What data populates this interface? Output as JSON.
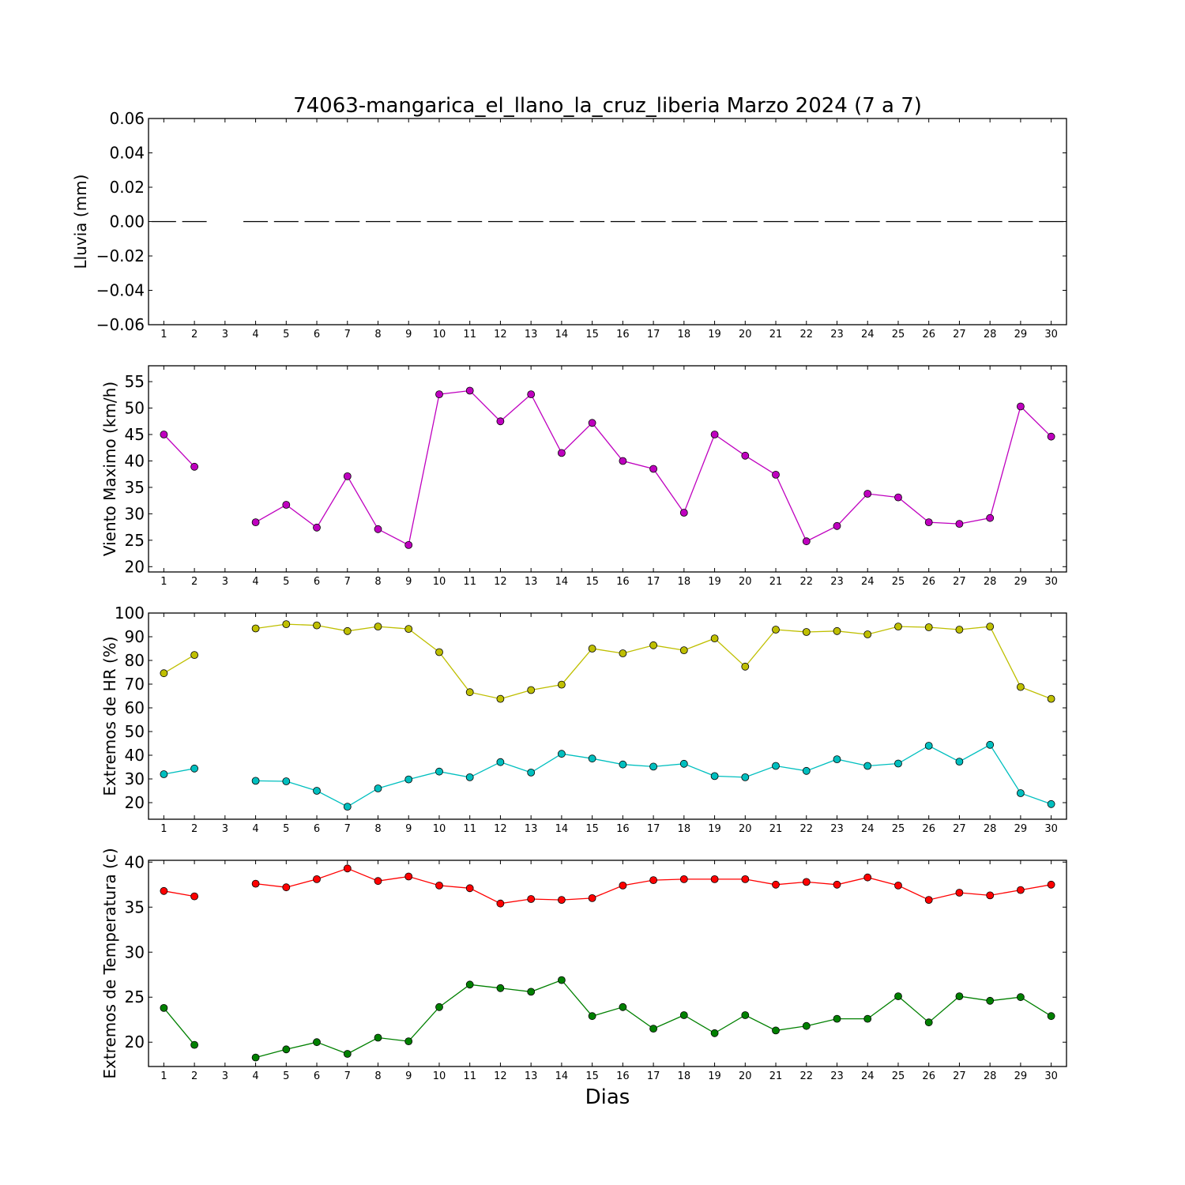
{
  "figure": {
    "title": "74063-mangarica_el_llano_la_cruz_liberia Marzo 2024  (7 a 7)",
    "xlabel": "Dias"
  },
  "chart_data": [
    {
      "type": "line",
      "ylabel": "Lluvia (mm)",
      "xlim": [
        0.5,
        30.5
      ],
      "ylim": [
        -0.06,
        0.06
      ],
      "x": [
        1,
        2,
        3,
        4,
        5,
        6,
        7,
        8,
        9,
        10,
        11,
        12,
        13,
        14,
        15,
        16,
        17,
        18,
        19,
        20,
        21,
        22,
        23,
        24,
        25,
        26,
        27,
        28,
        29,
        30
      ],
      "xticks": [
        "1",
        "2",
        "3",
        "4",
        "5",
        "6",
        "7",
        "8",
        "9",
        "10",
        "11",
        "12",
        "13",
        "14",
        "15",
        "16",
        "17",
        "18",
        "19",
        "20",
        "21",
        "22",
        "23",
        "24",
        "25",
        "26",
        "27",
        "28",
        "29",
        "30"
      ],
      "yticks": [
        -0.06,
        -0.04,
        -0.02,
        0.0,
        0.02,
        0.04,
        0.06
      ],
      "ytick_labels": [
        "−0.06",
        "−0.04",
        "−0.02",
        "0.00",
        "0.02",
        "0.04",
        "0.06"
      ],
      "grid": false,
      "series": [
        {
          "style": "bar-dash",
          "color": "#000000",
          "values": [
            0,
            0,
            null,
            0,
            0,
            0,
            0,
            0,
            0,
            0,
            0,
            0,
            0,
            0,
            0,
            0,
            0,
            0,
            0,
            0,
            0,
            0,
            0,
            0,
            0,
            0,
            0,
            0,
            0,
            0
          ]
        }
      ]
    },
    {
      "type": "line",
      "ylabel": "Viento Maximo (km/h)",
      "xlim": [
        0.5,
        30.5
      ],
      "ylim": [
        19,
        58
      ],
      "x": [
        1,
        2,
        3,
        4,
        5,
        6,
        7,
        8,
        9,
        10,
        11,
        12,
        13,
        14,
        15,
        16,
        17,
        18,
        19,
        20,
        21,
        22,
        23,
        24,
        25,
        26,
        27,
        28,
        29,
        30
      ],
      "xticks": [
        "1",
        "2",
        "3",
        "4",
        "5",
        "6",
        "7",
        "8",
        "9",
        "10",
        "11",
        "12",
        "13",
        "14",
        "15",
        "16",
        "17",
        "18",
        "19",
        "20",
        "21",
        "22",
        "23",
        "24",
        "25",
        "26",
        "27",
        "28",
        "29",
        "30"
      ],
      "yticks": [
        20,
        25,
        30,
        35,
        40,
        45,
        50,
        55
      ],
      "ytick_labels": [
        "20",
        "25",
        "30",
        "35",
        "40",
        "45",
        "50",
        "55"
      ],
      "grid": false,
      "series": [
        {
          "style": "line-marker",
          "color": "#bf00bf",
          "values": [
            45,
            38.9,
            null,
            28.4,
            31.7,
            27.4,
            37.1,
            27.1,
            24.1,
            52.6,
            53.3,
            47.5,
            52.6,
            41.5,
            47.2,
            40,
            38.5,
            30.2,
            45,
            41,
            37.4,
            24.8,
            27.7,
            33.8,
            33.1,
            28.4,
            28.1,
            29.2,
            50.3,
            44.6
          ]
        }
      ]
    },
    {
      "type": "line",
      "ylabel": "Extremos de HR (%)",
      "xlim": [
        0.5,
        30.5
      ],
      "ylim": [
        13,
        100
      ],
      "x": [
        1,
        2,
        3,
        4,
        5,
        6,
        7,
        8,
        9,
        10,
        11,
        12,
        13,
        14,
        15,
        16,
        17,
        18,
        19,
        20,
        21,
        22,
        23,
        24,
        25,
        26,
        27,
        28,
        29,
        30
      ],
      "xticks": [
        "1",
        "2",
        "3",
        "4",
        "5",
        "6",
        "7",
        "8",
        "9",
        "10",
        "11",
        "12",
        "13",
        "14",
        "15",
        "16",
        "17",
        "18",
        "19",
        "20",
        "21",
        "22",
        "23",
        "24",
        "25",
        "26",
        "27",
        "28",
        "29",
        "30"
      ],
      "yticks": [
        20,
        30,
        40,
        50,
        60,
        70,
        80,
        90,
        100
      ],
      "ytick_labels": [
        "20",
        "30",
        "40",
        "50",
        "60",
        "70",
        "80",
        "90",
        "100"
      ],
      "grid": false,
      "series": [
        {
          "style": "line-marker",
          "color": "#bfbf00",
          "values": [
            74.6,
            82.3,
            null,
            93.5,
            95.3,
            94.8,
            92.4,
            94.3,
            93.3,
            83.5,
            66.6,
            63.8,
            67.5,
            69.8,
            85,
            83,
            86.4,
            84.3,
            89.3,
            77.4,
            93,
            92,
            92.4,
            91,
            94.3,
            94,
            93,
            94.3,
            68.8,
            63.8
          ]
        },
        {
          "style": "line-marker",
          "color": "#00bfbf",
          "values": [
            32,
            34.4,
            null,
            29.2,
            29,
            25,
            18.3,
            26,
            29.8,
            33.1,
            30.7,
            37.1,
            32.7,
            40.6,
            38.6,
            36.1,
            35.2,
            36.4,
            31.2,
            30.7,
            35.5,
            33.4,
            38.3,
            35.5,
            36.5,
            44,
            37.3,
            44.4,
            24,
            19.4
          ]
        }
      ]
    },
    {
      "type": "line",
      "ylabel": "Extremos de Temperatura (c)",
      "xlim": [
        0.5,
        30.5
      ],
      "ylim": [
        17.3,
        40.2
      ],
      "x": [
        1,
        2,
        3,
        4,
        5,
        6,
        7,
        8,
        9,
        10,
        11,
        12,
        13,
        14,
        15,
        16,
        17,
        18,
        19,
        20,
        21,
        22,
        23,
        24,
        25,
        26,
        27,
        28,
        29,
        30
      ],
      "xticks": [
        "1",
        "2",
        "3",
        "4",
        "5",
        "6",
        "7",
        "8",
        "9",
        "10",
        "11",
        "12",
        "13",
        "14",
        "15",
        "16",
        "17",
        "18",
        "19",
        "20",
        "21",
        "22",
        "23",
        "24",
        "25",
        "26",
        "27",
        "28",
        "29",
        "30"
      ],
      "yticks": [
        20,
        25,
        30,
        35,
        40
      ],
      "ytick_labels": [
        "20",
        "25",
        "30",
        "35",
        "40"
      ],
      "grid": false,
      "series": [
        {
          "style": "line-marker",
          "color": "#ff0000",
          "values": [
            36.8,
            36.2,
            null,
            37.6,
            37.2,
            38.1,
            39.3,
            37.9,
            38.4,
            37.4,
            37.1,
            35.4,
            35.9,
            35.8,
            36,
            37.4,
            38,
            38.1,
            38.1,
            38.1,
            37.5,
            37.8,
            37.5,
            38.3,
            37.4,
            35.8,
            36.6,
            36.3,
            36.9,
            37.5
          ]
        },
        {
          "style": "line-marker",
          "color": "#008000",
          "values": [
            23.8,
            19.7,
            null,
            18.3,
            19.2,
            20,
            18.7,
            20.5,
            20.1,
            23.9,
            26.4,
            26,
            25.6,
            26.9,
            22.9,
            23.9,
            21.5,
            23,
            21,
            23,
            21.3,
            21.8,
            22.6,
            22.6,
            25.1,
            22.2,
            25.1,
            24.6,
            25,
            22.9
          ]
        }
      ]
    }
  ]
}
